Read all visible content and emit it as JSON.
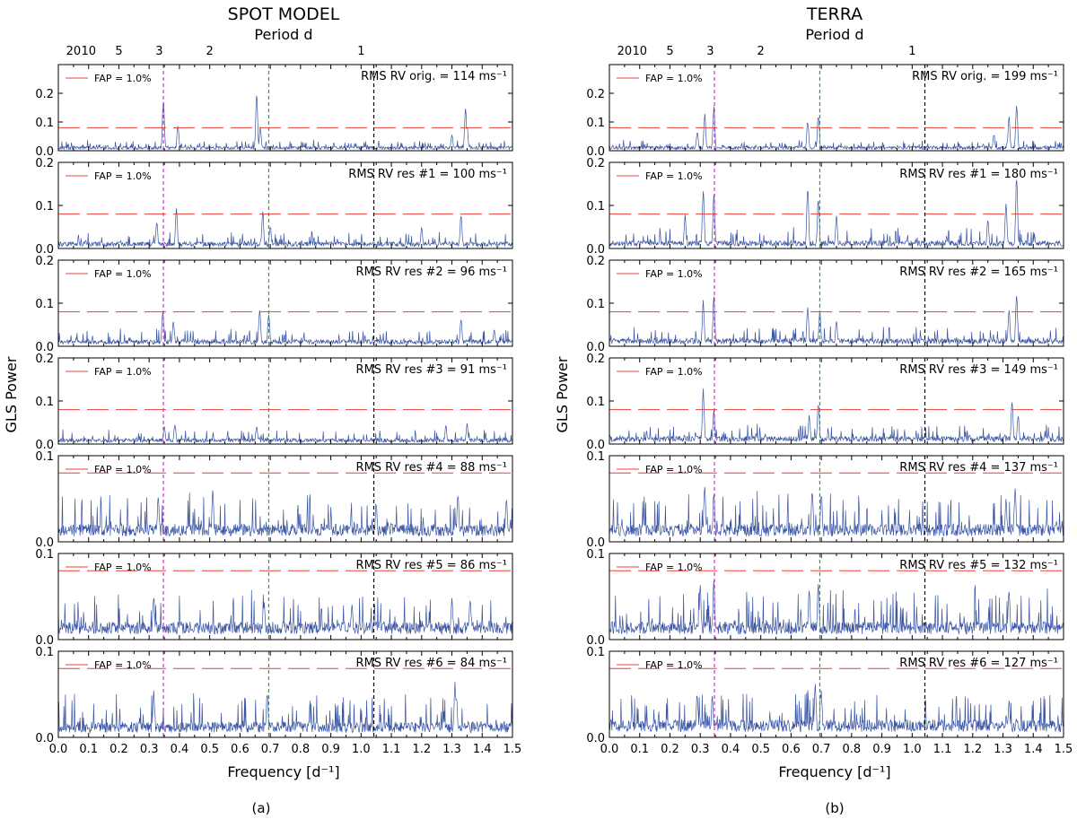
{
  "chart_data": [
    {
      "type": "line",
      "title": "SPOT MODEL",
      "sublabel": "(a)",
      "xlabel": "Frequency [d⁻¹]",
      "ylabel": "GLS Power",
      "xlim": [
        0.0,
        1.5
      ],
      "x_ticks": [
        "0.0",
        "0.1",
        "0.2",
        "0.3",
        "0.4",
        "0.5",
        "0.6",
        "0.7",
        "0.8",
        "0.9",
        "1.0",
        "1.1",
        "1.2",
        "1.3",
        "1.4",
        "1.5"
      ],
      "top_axis": {
        "label": "Period d",
        "tick_labels": [
          "20",
          "10",
          "5",
          "3",
          "2",
          "1"
        ],
        "periods": [
          20,
          10,
          5,
          3,
          2,
          1
        ]
      },
      "marker_lines": [
        {
          "x": 0.347,
          "color": "#cc33cc"
        },
        {
          "x": 0.695,
          "color": "#22aa22"
        },
        {
          "x": 1.042,
          "color": "#000000"
        }
      ],
      "series_color": "#3a55a4",
      "fap_color": "#e8403a",
      "panels": [
        {
          "label": "RMS RV orig. = 114 ms⁻¹",
          "fap_label": "FAP = 1.0%",
          "fap": 0.08,
          "ylim": [
            0,
            0.3
          ],
          "yticks": [
            "0.0",
            "0.1",
            "0.2"
          ],
          "base": 0.012,
          "noise": 0.012,
          "peaks": [
            {
              "f": 0.347,
              "p": 0.19
            },
            {
              "f": 0.395,
              "p": 0.095
            },
            {
              "f": 0.655,
              "p": 0.205
            },
            {
              "f": 0.667,
              "p": 0.085
            },
            {
              "f": 1.345,
              "p": 0.15
            },
            {
              "f": 1.35,
              "p": 0.09
            },
            {
              "f": 1.3,
              "p": 0.06
            }
          ]
        },
        {
          "label": "RMS RV res #1 = 100 ms⁻¹",
          "fap_label": "FAP = 1.0%",
          "fap": 0.08,
          "ylim": [
            0,
            0.2
          ],
          "yticks": [
            "0.0",
            "0.1",
            "0.2"
          ],
          "base": 0.012,
          "noise": 0.014,
          "peaks": [
            {
              "f": 0.39,
              "p": 0.1
            },
            {
              "f": 0.325,
              "p": 0.065
            },
            {
              "f": 0.675,
              "p": 0.09
            },
            {
              "f": 0.7,
              "p": 0.055
            },
            {
              "f": 1.33,
              "p": 0.085
            },
            {
              "f": 1.2,
              "p": 0.05
            }
          ]
        },
        {
          "label": "RMS RV res #2 = 96 ms⁻¹",
          "fap_label": "FAP = 1.0%",
          "fap": 0.08,
          "ylim": [
            0,
            0.2
          ],
          "yticks": [
            "0.0",
            "0.1",
            "0.2"
          ],
          "base": 0.012,
          "noise": 0.014,
          "peaks": [
            {
              "f": 0.345,
              "p": 0.085
            },
            {
              "f": 0.38,
              "p": 0.06
            },
            {
              "f": 0.665,
              "p": 0.095
            },
            {
              "f": 0.695,
              "p": 0.085
            },
            {
              "f": 1.33,
              "p": 0.07
            },
            {
              "f": 1.44,
              "p": 0.04
            }
          ]
        },
        {
          "label": "RMS RV res #3 = 91 ms⁻¹",
          "fap_label": "FAP = 1.0%",
          "fap": 0.08,
          "ylim": [
            0,
            0.2
          ],
          "yticks": [
            "0.0",
            "0.1",
            "0.2"
          ],
          "base": 0.01,
          "noise": 0.012,
          "peaks": [
            {
              "f": 0.35,
              "p": 0.045
            },
            {
              "f": 0.385,
              "p": 0.05
            },
            {
              "f": 0.655,
              "p": 0.045
            },
            {
              "f": 1.28,
              "p": 0.045
            },
            {
              "f": 1.35,
              "p": 0.05
            }
          ]
        },
        {
          "label": "RMS RV res #4 = 88 ms⁻¹",
          "fap_label": "FAP = 1.0%",
          "fap": 0.08,
          "ylim": [
            0,
            0.1
          ],
          "yticks": [
            "0.0",
            "0.1"
          ],
          "base": 0.016,
          "noise": 0.02,
          "peaks": [
            {
              "f": 0.33,
              "p": 0.055
            },
            {
              "f": 0.51,
              "p": 0.06
            },
            {
              "f": 1.05,
              "p": 0.05
            },
            {
              "f": 1.32,
              "p": 0.06
            },
            {
              "f": 1.48,
              "p": 0.055
            }
          ]
        },
        {
          "label": "RMS RV res #5 = 86 ms⁻¹",
          "fap_label": "FAP = 1.0%",
          "fap": 0.08,
          "ylim": [
            0,
            0.1
          ],
          "yticks": [
            "0.0",
            "0.1"
          ],
          "base": 0.016,
          "noise": 0.02,
          "peaks": [
            {
              "f": 0.315,
              "p": 0.055
            },
            {
              "f": 0.68,
              "p": 0.045
            },
            {
              "f": 0.97,
              "p": 0.045
            },
            {
              "f": 1.3,
              "p": 0.05
            },
            {
              "f": 1.36,
              "p": 0.05
            }
          ]
        },
        {
          "label": "RMS RV res #6 = 84 ms⁻¹",
          "fap_label": "FAP = 1.0%",
          "fap": 0.08,
          "ylim": [
            0,
            0.1
          ],
          "yticks": [
            "0.0",
            "0.1"
          ],
          "base": 0.014,
          "noise": 0.018,
          "peaks": [
            {
              "f": 0.315,
              "p": 0.055
            },
            {
              "f": 0.69,
              "p": 0.055
            },
            {
              "f": 1.31,
              "p": 0.065
            },
            {
              "f": 1.315,
              "p": 0.05
            }
          ]
        }
      ]
    },
    {
      "type": "line",
      "title": "TERRA",
      "sublabel": "(b)",
      "xlabel": "Frequency [d⁻¹]",
      "ylabel": "GLS Power",
      "xlim": [
        0.0,
        1.5
      ],
      "x_ticks": [
        "0.0",
        "0.1",
        "0.2",
        "0.3",
        "0.4",
        "0.5",
        "0.6",
        "0.7",
        "0.8",
        "0.9",
        "1.0",
        "1.1",
        "1.2",
        "1.3",
        "1.4",
        "1.5"
      ],
      "top_axis": {
        "label": "Period d",
        "tick_labels": [
          "20",
          "10",
          "5",
          "3",
          "2",
          "1"
        ],
        "periods": [
          20,
          10,
          5,
          3,
          2,
          1
        ]
      },
      "marker_lines": [
        {
          "x": 0.347,
          "color": "#cc33cc"
        },
        {
          "x": 0.695,
          "color": "#22aa22"
        },
        {
          "x": 1.042,
          "color": "#000000"
        }
      ],
      "series_color": "#3a55a4",
      "fap_color": "#e8403a",
      "panels": [
        {
          "label": "RMS RV orig. = 199 ms⁻¹",
          "fap_label": "FAP = 1.0%",
          "fap": 0.08,
          "ylim": [
            0,
            0.3
          ],
          "yticks": [
            "0.0",
            "0.1",
            "0.2"
          ],
          "base": 0.012,
          "noise": 0.012,
          "peaks": [
            {
              "f": 0.315,
              "p": 0.13
            },
            {
              "f": 0.345,
              "p": 0.16
            },
            {
              "f": 0.29,
              "p": 0.07
            },
            {
              "f": 0.655,
              "p": 0.11
            },
            {
              "f": 0.69,
              "p": 0.13
            },
            {
              "f": 1.32,
              "p": 0.12
            },
            {
              "f": 1.345,
              "p": 0.18
            },
            {
              "f": 1.27,
              "p": 0.06
            }
          ]
        },
        {
          "label": "RMS RV res #1 = 180 ms⁻¹",
          "fap_label": "FAP = 1.0%",
          "fap": 0.08,
          "ylim": [
            0,
            0.2
          ],
          "yticks": [
            "0.0",
            "0.1",
            "0.2"
          ],
          "base": 0.014,
          "noise": 0.016,
          "peaks": [
            {
              "f": 0.31,
              "p": 0.14
            },
            {
              "f": 0.345,
              "p": 0.13
            },
            {
              "f": 0.25,
              "p": 0.08
            },
            {
              "f": 0.655,
              "p": 0.15
            },
            {
              "f": 0.69,
              "p": 0.12
            },
            {
              "f": 0.75,
              "p": 0.08
            },
            {
              "f": 1.31,
              "p": 0.11
            },
            {
              "f": 1.345,
              "p": 0.18
            },
            {
              "f": 1.25,
              "p": 0.07
            }
          ]
        },
        {
          "label": "RMS RV res #2 = 165 ms⁻¹",
          "fap_label": "FAP = 1.0%",
          "fap": 0.08,
          "ylim": [
            0,
            0.2
          ],
          "yticks": [
            "0.0",
            "0.1",
            "0.2"
          ],
          "base": 0.014,
          "noise": 0.016,
          "peaks": [
            {
              "f": 0.31,
              "p": 0.11
            },
            {
              "f": 0.345,
              "p": 0.12
            },
            {
              "f": 0.655,
              "p": 0.1
            },
            {
              "f": 0.695,
              "p": 0.085
            },
            {
              "f": 0.75,
              "p": 0.06
            },
            {
              "f": 1.32,
              "p": 0.09
            },
            {
              "f": 1.345,
              "p": 0.13
            }
          ]
        },
        {
          "label": "RMS RV res #3 = 149 ms⁻¹",
          "fap_label": "FAP = 1.0%",
          "fap": 0.08,
          "ylim": [
            0,
            0.2
          ],
          "yticks": [
            "0.0",
            "0.1",
            "0.2"
          ],
          "base": 0.014,
          "noise": 0.016,
          "peaks": [
            {
              "f": 0.31,
              "p": 0.13
            },
            {
              "f": 0.345,
              "p": 0.085
            },
            {
              "f": 0.66,
              "p": 0.07
            },
            {
              "f": 0.69,
              "p": 0.1
            },
            {
              "f": 1.33,
              "p": 0.105
            },
            {
              "f": 1.35,
              "p": 0.07
            }
          ]
        },
        {
          "label": "RMS RV res #4 = 137 ms⁻¹",
          "fap_label": "FAP = 1.0%",
          "fap": 0.08,
          "ylim": [
            0,
            0.1
          ],
          "yticks": [
            "0.0",
            "0.1"
          ],
          "base": 0.016,
          "noise": 0.02,
          "peaks": [
            {
              "f": 0.315,
              "p": 0.07
            },
            {
              "f": 0.345,
              "p": 0.06
            },
            {
              "f": 0.67,
              "p": 0.065
            },
            {
              "f": 0.7,
              "p": 0.06
            },
            {
              "f": 1.34,
              "p": 0.065
            },
            {
              "f": 1.31,
              "p": 0.05
            }
          ]
        },
        {
          "label": "RMS RV res #5 = 132 ms⁻¹",
          "fap_label": "FAP = 1.0%",
          "fap": 0.08,
          "ylim": [
            0,
            0.1
          ],
          "yticks": [
            "0.0",
            "0.1"
          ],
          "base": 0.016,
          "noise": 0.022,
          "peaks": [
            {
              "f": 0.3,
              "p": 0.065
            },
            {
              "f": 0.345,
              "p": 0.07
            },
            {
              "f": 0.66,
              "p": 0.06
            },
            {
              "f": 0.69,
              "p": 0.065
            },
            {
              "f": 1.32,
              "p": 0.065
            }
          ]
        },
        {
          "label": "RMS RV res #6 = 127 ms⁻¹",
          "fap_label": "FAP = 1.0%",
          "fap": 0.08,
          "ylim": [
            0,
            0.1
          ],
          "yticks": [
            "0.0",
            "0.1"
          ],
          "base": 0.016,
          "noise": 0.02,
          "peaks": [
            {
              "f": 0.29,
              "p": 0.055
            },
            {
              "f": 0.34,
              "p": 0.05
            },
            {
              "f": 0.68,
              "p": 0.065
            },
            {
              "f": 0.7,
              "p": 0.055
            },
            {
              "f": 1.32,
              "p": 0.045
            }
          ]
        }
      ]
    }
  ]
}
